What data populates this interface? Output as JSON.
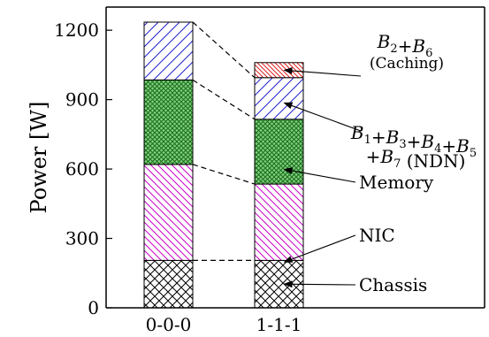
{
  "chart_data": {
    "type": "bar",
    "stacked": true,
    "categories": [
      "0-0-0",
      "1-1-1"
    ],
    "ylabel": "Power [W]",
    "ylim": [
      0,
      1300
    ],
    "yticks": [
      0,
      300,
      600,
      900,
      1200
    ],
    "grid": false,
    "connectors": "dashed lines join matching segment tops between the two bars",
    "series": [
      {
        "name": "Chassis",
        "label": "Chassis",
        "values": [
          205,
          205
        ],
        "pattern": "crosshatch",
        "color": "#000000"
      },
      {
        "name": "NIC",
        "label": "NIC",
        "values": [
          415,
          330
        ],
        "pattern": "diagonal-down",
        "color": "#cc00cc"
      },
      {
        "name": "Memory",
        "label": "Memory",
        "values": [
          365,
          280
        ],
        "pattern": "dense-grid",
        "color": "#1a7a1a",
        "fill": "#7fd17f"
      },
      {
        "name": "B1+B3+B4+B5+B7 (NDN)",
        "label_line1": "B1+B3+B4+B5",
        "label_line2": "+B7 (NDN)",
        "values": [
          250,
          180
        ],
        "pattern": "diagonal-up",
        "color": "#2222cc"
      },
      {
        "name": "B2+B6 (Caching)",
        "label_line1": "B2+B6",
        "label_line2": "(Caching)",
        "values": [
          0,
          65
        ],
        "pattern": "diagonal-down-fine",
        "color": "#dd2222"
      }
    ]
  }
}
